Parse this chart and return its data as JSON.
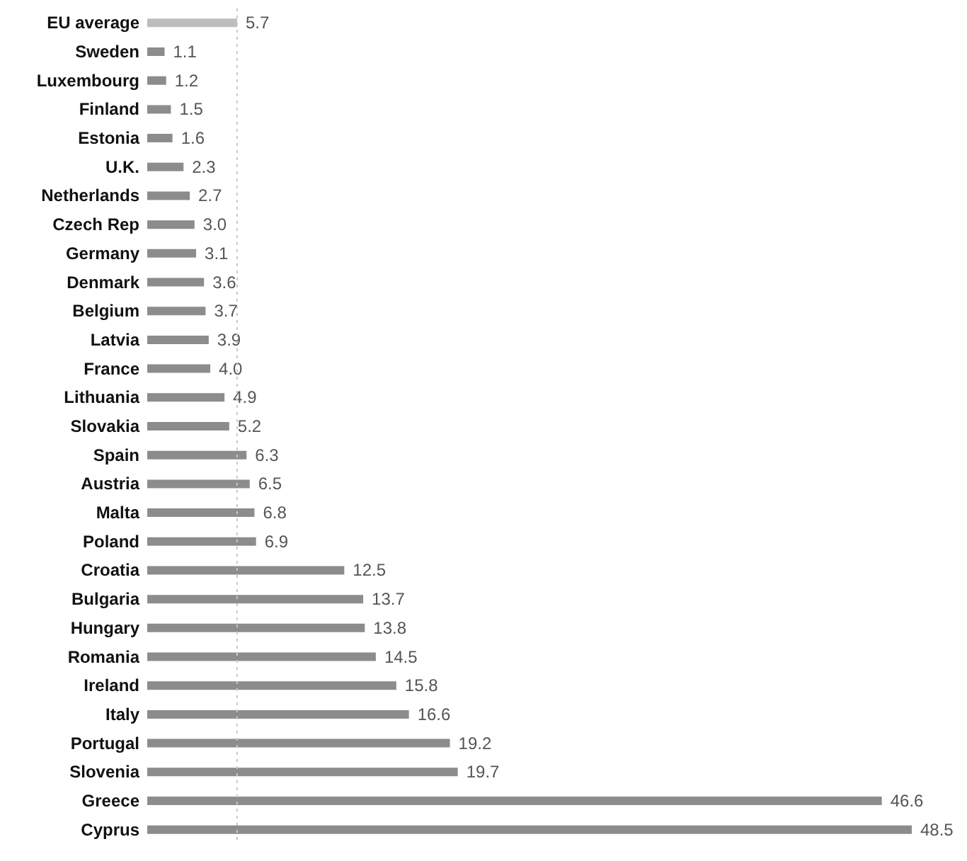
{
  "chart_data": {
    "type": "bar",
    "orientation": "horizontal",
    "categories": [
      "EU average",
      "Sweden",
      "Luxembourg",
      "Finland",
      "Estonia",
      "U.K.",
      "Netherlands",
      "Czech Rep",
      "Germany",
      "Denmark",
      "Belgium",
      "Latvia",
      "France",
      "Lithuania",
      "Slovakia",
      "Spain",
      "Austria",
      "Malta",
      "Poland",
      "Croatia",
      "Bulgaria",
      "Hungary",
      "Romania",
      "Ireland",
      "Italy",
      "Portugal",
      "Slovenia",
      "Greece",
      "Cyprus"
    ],
    "values": [
      5.7,
      1.1,
      1.2,
      1.5,
      1.6,
      2.3,
      2.7,
      3.0,
      3.1,
      3.6,
      3.7,
      3.9,
      4.0,
      4.9,
      5.2,
      6.3,
      6.5,
      6.8,
      6.9,
      12.5,
      13.7,
      13.8,
      14.5,
      15.8,
      16.6,
      19.2,
      19.7,
      46.6,
      48.5
    ],
    "value_labels": [
      "5.7",
      "1.1",
      "1.2",
      "1.5",
      "1.6",
      "2.3",
      "2.7",
      "3.0",
      "3.1",
      "3.6",
      "3.7",
      "3.9",
      "4.0",
      "4.9",
      "5.2",
      "6.3",
      "6.5",
      "6.8",
      "6.9",
      "12.5",
      "13.7",
      "13.8",
      "14.5",
      "15.8",
      "16.6",
      "19.2",
      "19.7",
      "46.6",
      "48.5"
    ],
    "colors": [
      "#bdbdbd",
      "#8c8c8c",
      "#8c8c8c",
      "#8c8c8c",
      "#8c8c8c",
      "#8c8c8c",
      "#8c8c8c",
      "#8c8c8c",
      "#8c8c8c",
      "#8c8c8c",
      "#8c8c8c",
      "#8c8c8c",
      "#8c8c8c",
      "#8c8c8c",
      "#8c8c8c",
      "#8c8c8c",
      "#8c8c8c",
      "#8c8c8c",
      "#8c8c8c",
      "#8c8c8c",
      "#8c8c8c",
      "#8c8c8c",
      "#8c8c8c",
      "#8c8c8c",
      "#8c8c8c",
      "#8c8c8c",
      "#8c8c8c",
      "#8c8c8c",
      "#8c8c8c"
    ],
    "ref_lines": [
      {
        "axis": "x",
        "value": 5.7,
        "color": "#c8c8c8",
        "line_style": "dotted"
      }
    ],
    "grid": false
  }
}
